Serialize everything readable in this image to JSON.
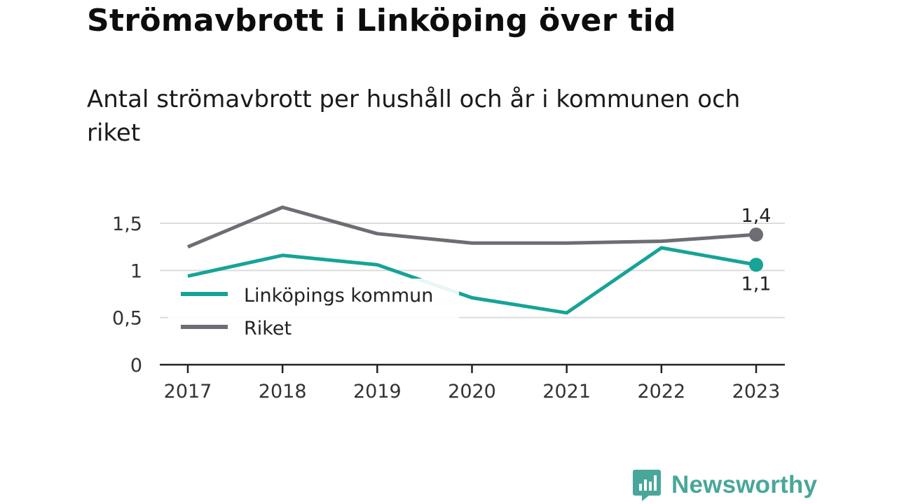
{
  "title": "Strömavbrott i Linköping över tid",
  "subtitle": "Antal strömavbrott per hushåll och år i kommunen och riket",
  "brand": {
    "name": "Newsworthy"
  },
  "chart_data": {
    "type": "line",
    "x": [
      "2017",
      "2018",
      "2019",
      "2020",
      "2021",
      "2022",
      "2023"
    ],
    "yticks": [
      "0",
      "0,5",
      "1",
      "1,5"
    ],
    "ylim": [
      0,
      1.75
    ],
    "grid": true,
    "legend_position": "left",
    "series": [
      {
        "name": "Linköpings kommun",
        "color": "#17a397",
        "values": [
          0.94,
          1.16,
          1.06,
          0.71,
          0.55,
          1.24,
          1.06
        ],
        "end_label": "1,1"
      },
      {
        "name": "Riket",
        "color": "#6d6d74",
        "values": [
          1.25,
          1.67,
          1.39,
          1.29,
          1.29,
          1.31,
          1.38
        ],
        "end_label": "1,4"
      }
    ]
  }
}
